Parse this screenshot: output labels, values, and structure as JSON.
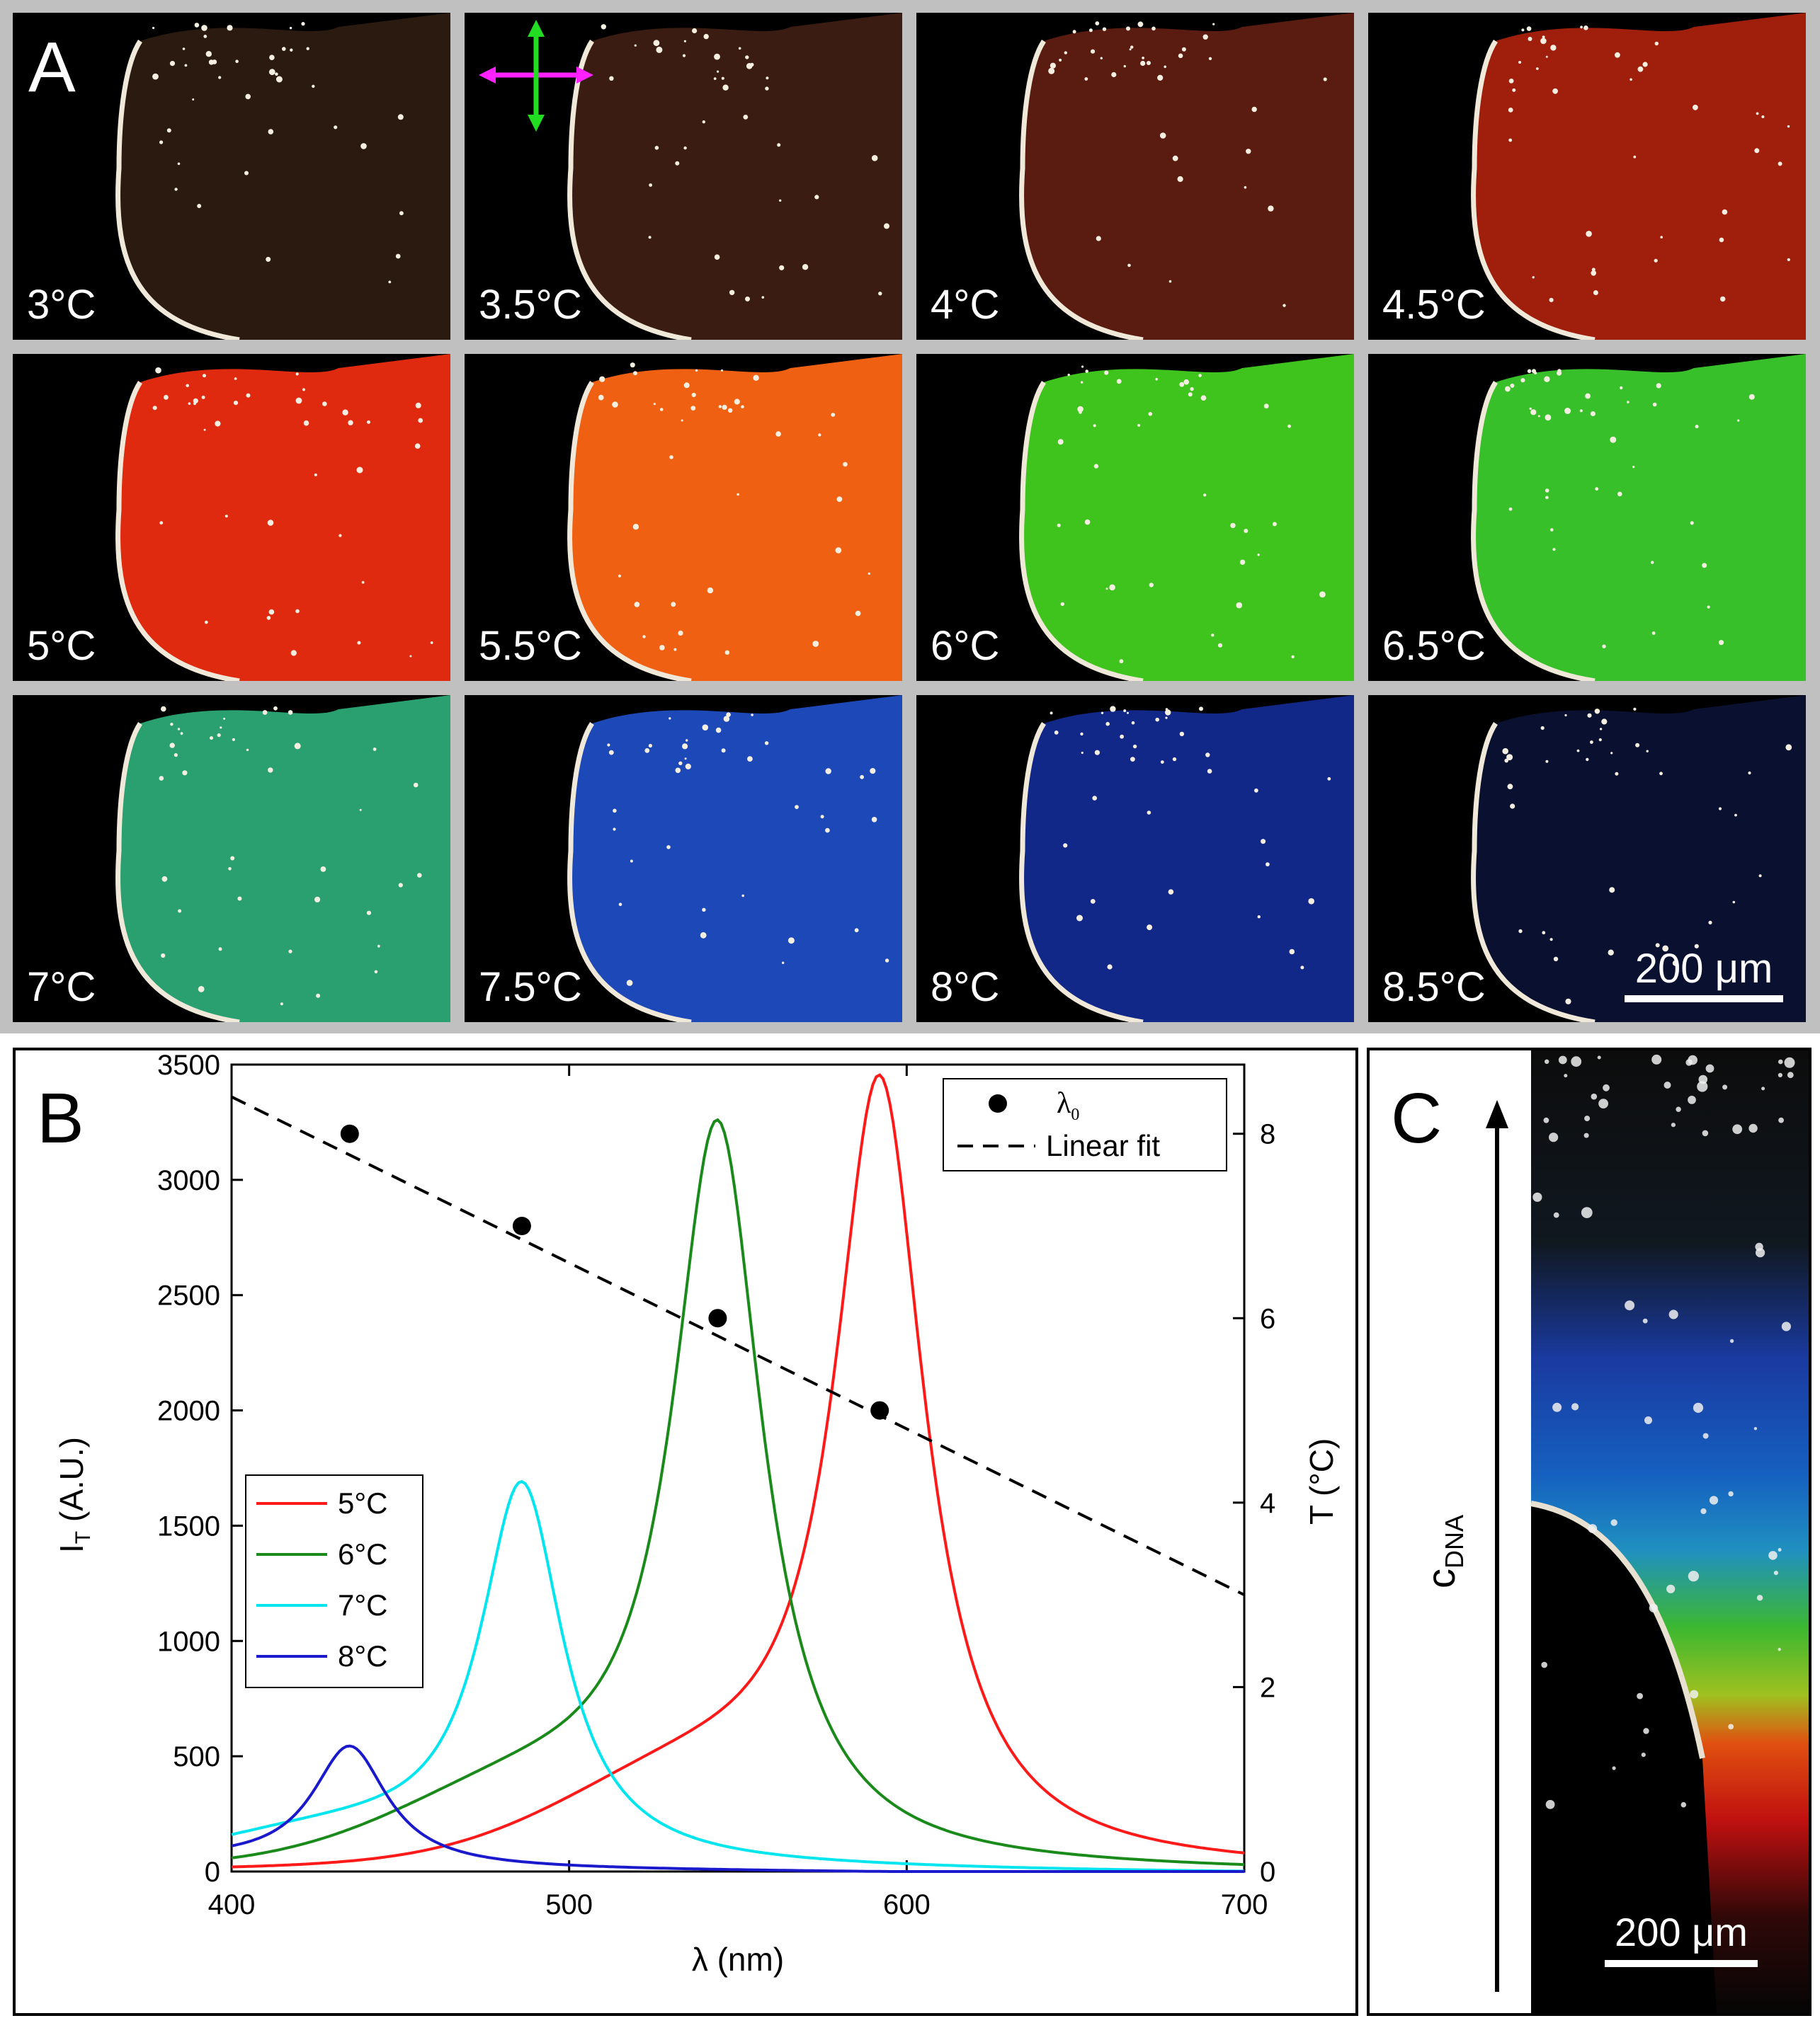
{
  "panel_a": {
    "letter": "A",
    "scale_bar": "200 μm",
    "tiles": [
      {
        "temp": "3°C",
        "color": "#2a1a10"
      },
      {
        "temp": "3.5°C",
        "color": "#3a1c12"
      },
      {
        "temp": "4°C",
        "color": "#5a1c10"
      },
      {
        "temp": "4.5°C",
        "color": "#a01e0c"
      },
      {
        "temp": "5°C",
        "color": "#e02a10"
      },
      {
        "temp": "5.5°C",
        "color": "#f06012"
      },
      {
        "temp": "6°C",
        "color": "#3fc41e"
      },
      {
        "temp": "6.5°C",
        "color": "#38c02a"
      },
      {
        "temp": "7°C",
        "color": "#2aa070"
      },
      {
        "temp": "7.5°C",
        "color": "#1c48b8"
      },
      {
        "temp": "8°C",
        "color": "#122888"
      },
      {
        "temp": "8.5°C",
        "color": "#0a1030"
      }
    ]
  },
  "panel_b": {
    "letter": "B",
    "chart_data": {
      "type": "line",
      "xlabel": "λ (nm)",
      "ylabel": "I",
      "ylabel_sub": "T",
      "ylabel_suffix": " (A.U.)",
      "y2label": "T (°C)",
      "xlim": [
        400,
        700
      ],
      "ylim": [
        0,
        3500
      ],
      "y2lim": [
        0,
        8.75
      ],
      "xticks": [
        "400",
        "500",
        "600",
        "700"
      ],
      "yticks": [
        "0",
        "500",
        "1000",
        "1500",
        "2000",
        "2500",
        "3000",
        "3500"
      ],
      "y2ticks": [
        "0",
        "2",
        "4",
        "6",
        "8"
      ],
      "series": [
        {
          "name": "5°C",
          "color": "#ff1a1a",
          "peak": 592,
          "amp": 3310,
          "width": 12,
          "shoulder": 340,
          "base": 30
        },
        {
          "name": "6°C",
          "color": "#1a8a1a",
          "peak": 544,
          "amp": 3140,
          "width": 12,
          "shoulder": 300,
          "base": 20
        },
        {
          "name": "7°C",
          "color": "#00e5ee",
          "peak": 486,
          "amp": 1620,
          "width": 11,
          "shoulder": 140,
          "base": 30
        },
        {
          "name": "8°C",
          "color": "#1a1acc",
          "peak": 435,
          "amp": 520,
          "width": 10,
          "shoulder": 40,
          "base": 20
        }
      ],
      "lambda0_points": [
        {
          "x": 435,
          "T": 8
        },
        {
          "x": 486,
          "T": 7
        },
        {
          "x": 544,
          "T": 6
        },
        {
          "x": 592,
          "T": 5
        }
      ],
      "linear_fit": {
        "x": [
          400,
          700
        ],
        "T": [
          8.4,
          3.0
        ]
      },
      "legend_series_names": [
        "5°C",
        "6°C",
        "7°C",
        "8°C"
      ],
      "legend2": {
        "point_label": "λ",
        "point_sub": "0",
        "fit_label": "Linear fit"
      }
    }
  },
  "panel_c": {
    "letter": "C",
    "axis_label": "c",
    "axis_sub": "DNA",
    "scale_bar": "200 μm"
  }
}
